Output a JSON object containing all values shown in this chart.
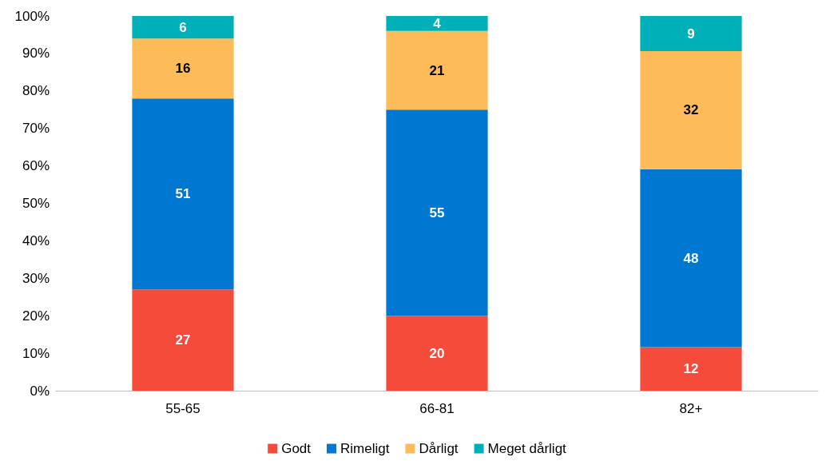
{
  "chart_data": {
    "type": "bar",
    "stacked": true,
    "categories": [
      "55-65",
      "66-81",
      "82+"
    ],
    "series": [
      {
        "name": "Godt",
        "color": "#f44b3b",
        "values": [
          27,
          20,
          11.6
        ],
        "value_labels": [
          "27",
          "20",
          "12"
        ]
      },
      {
        "name": "Rimeligt",
        "color": "#0077d0",
        "values": [
          51,
          55,
          47.5
        ],
        "value_labels": [
          "51",
          "55",
          "48"
        ]
      },
      {
        "name": "Dårligt",
        "color": "#fdbb5a",
        "values": [
          16,
          21,
          31.5
        ],
        "value_labels": [
          "16",
          "21",
          "32"
        ]
      },
      {
        "name": "Meget dårligt",
        "color": "#00b0b9",
        "values": [
          6,
          4,
          9.4
        ],
        "value_labels": [
          "6",
          "4",
          "9"
        ]
      }
    ],
    "ylim": [
      0,
      100
    ],
    "yticks": [
      {
        "value": 0,
        "label": "0%"
      },
      {
        "value": 10,
        "label": "10%"
      },
      {
        "value": 20,
        "label": "20%"
      },
      {
        "value": 30,
        "label": "30%"
      },
      {
        "value": 40,
        "label": "40%"
      },
      {
        "value": 50,
        "label": "50%"
      },
      {
        "value": 60,
        "label": "60%"
      },
      {
        "value": 70,
        "label": "70%"
      },
      {
        "value": 80,
        "label": "80%"
      },
      {
        "value": 90,
        "label": "90%"
      },
      {
        "value": 100,
        "label": "100%"
      }
    ],
    "grid": false,
    "legend": "bottom"
  }
}
